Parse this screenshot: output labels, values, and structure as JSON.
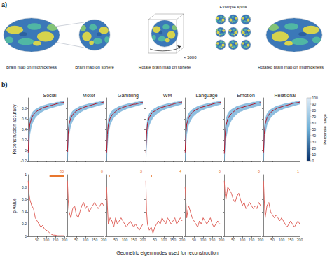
{
  "figure": {
    "panel_labels": [
      "a)",
      "b)"
    ],
    "panel_a": {
      "brain_left": "Brain map on midthickness",
      "sphere": "Brain map on sphere",
      "rotate": "Rotate brain map on sphere",
      "repeats": "× 5000",
      "spins": "Example spins",
      "brain_right": "Rotated brain map on midthickness"
    },
    "colorbar": {
      "label": "Percentile range",
      "range": [
        0,
        100
      ],
      "ticks": [
        0,
        10,
        20,
        30,
        40,
        50,
        60,
        70,
        80,
        90,
        100
      ]
    }
  },
  "chart_data": [
    {
      "type": "line",
      "title": "Social",
      "ylabel": "Reconstruction accuracy",
      "tick_labels": "y",
      "color": "#b2182b",
      "x": [
        1,
        5,
        10,
        20,
        30,
        40,
        50,
        60,
        70,
        80,
        90,
        100,
        110,
        120,
        130,
        140,
        150,
        160,
        170,
        180,
        190,
        200
      ],
      "values": [
        -0.05,
        0.3,
        0.5,
        0.62,
        0.68,
        0.72,
        0.75,
        0.77,
        0.79,
        0.81,
        0.82,
        0.83,
        0.84,
        0.85,
        0.86,
        0.87,
        0.88,
        0.89,
        0.9,
        0.905,
        0.91,
        0.92
      ],
      "band_lower": [
        -0.2,
        0.05,
        0.3,
        0.48,
        0.56,
        0.62,
        0.66,
        0.69,
        0.72,
        0.74,
        0.76,
        0.77,
        0.79,
        0.8,
        0.81,
        0.82,
        0.83,
        0.84,
        0.85,
        0.86,
        0.87,
        0.88
      ],
      "band_upper": [
        0.15,
        0.45,
        0.6,
        0.7,
        0.75,
        0.78,
        0.8,
        0.82,
        0.84,
        0.85,
        0.86,
        0.87,
        0.88,
        0.89,
        0.9,
        0.9,
        0.91,
        0.92,
        0.92,
        0.93,
        0.93,
        0.94
      ],
      "xlim": [
        0,
        200
      ],
      "xticks": [
        50,
        100,
        150,
        200
      ],
      "ylim": [
        -0.2,
        1
      ],
      "yticks": [
        -0.2,
        0,
        0.2,
        0.4,
        0.6,
        0.8
      ]
    },
    {
      "type": "line",
      "title": "Motor",
      "tick_labels": false,
      "color": "#b2182b",
      "x": [
        1,
        5,
        10,
        20,
        30,
        40,
        50,
        60,
        70,
        80,
        90,
        100,
        110,
        120,
        130,
        140,
        150,
        160,
        170,
        180,
        190,
        200
      ],
      "values": [
        -0.04,
        0.31,
        0.5,
        0.62,
        0.68,
        0.72,
        0.75,
        0.77,
        0.79,
        0.8,
        0.82,
        0.83,
        0.84,
        0.85,
        0.86,
        0.87,
        0.88,
        0.89,
        0.9,
        0.9,
        0.91,
        0.92
      ],
      "band_lower": [
        -0.2,
        0.05,
        0.3,
        0.48,
        0.56,
        0.62,
        0.66,
        0.69,
        0.72,
        0.74,
        0.76,
        0.77,
        0.79,
        0.8,
        0.81,
        0.82,
        0.83,
        0.84,
        0.85,
        0.86,
        0.87,
        0.88
      ],
      "band_upper": [
        0.15,
        0.45,
        0.6,
        0.7,
        0.75,
        0.78,
        0.8,
        0.82,
        0.84,
        0.85,
        0.86,
        0.87,
        0.88,
        0.89,
        0.9,
        0.9,
        0.91,
        0.92,
        0.92,
        0.93,
        0.93,
        0.94
      ],
      "xlim": [
        0,
        200
      ],
      "xticks": [
        50,
        100,
        150,
        200
      ],
      "ylim": [
        -0.2,
        1
      ],
      "yticks": [
        -0.2,
        0,
        0.2,
        0.4,
        0.6,
        0.8
      ]
    },
    {
      "type": "line",
      "title": "Gambling",
      "tick_labels": false,
      "color": "#b2182b",
      "x": [
        1,
        5,
        10,
        20,
        30,
        40,
        50,
        60,
        70,
        80,
        90,
        100,
        110,
        120,
        130,
        140,
        150,
        160,
        170,
        180,
        190,
        200
      ],
      "values": [
        -0.05,
        0.3,
        0.49,
        0.61,
        0.67,
        0.71,
        0.74,
        0.77,
        0.79,
        0.8,
        0.82,
        0.83,
        0.84,
        0.85,
        0.86,
        0.87,
        0.88,
        0.88,
        0.89,
        0.9,
        0.91,
        0.91
      ],
      "band_lower": [
        -0.2,
        0.05,
        0.3,
        0.48,
        0.56,
        0.62,
        0.66,
        0.69,
        0.72,
        0.74,
        0.76,
        0.77,
        0.79,
        0.8,
        0.81,
        0.82,
        0.83,
        0.84,
        0.85,
        0.86,
        0.87,
        0.88
      ],
      "band_upper": [
        0.15,
        0.45,
        0.6,
        0.7,
        0.75,
        0.78,
        0.8,
        0.82,
        0.84,
        0.85,
        0.86,
        0.87,
        0.88,
        0.89,
        0.9,
        0.9,
        0.91,
        0.92,
        0.92,
        0.93,
        0.93,
        0.94
      ],
      "xlim": [
        0,
        200
      ],
      "xticks": [
        50,
        100,
        150,
        200
      ],
      "ylim": [
        -0.2,
        1
      ],
      "yticks": [
        -0.2,
        0,
        0.2,
        0.4,
        0.6,
        0.8
      ]
    },
    {
      "type": "line",
      "title": "WM",
      "tick_labels": false,
      "color": "#b2182b",
      "x": [
        1,
        5,
        10,
        20,
        30,
        40,
        50,
        60,
        70,
        80,
        90,
        100,
        110,
        120,
        130,
        140,
        150,
        160,
        170,
        180,
        190,
        200
      ],
      "values": [
        -0.05,
        0.32,
        0.51,
        0.63,
        0.69,
        0.73,
        0.75,
        0.77,
        0.79,
        0.81,
        0.82,
        0.83,
        0.84,
        0.85,
        0.86,
        0.87,
        0.88,
        0.89,
        0.9,
        0.905,
        0.91,
        0.92
      ],
      "band_lower": [
        -0.2,
        0.05,
        0.3,
        0.48,
        0.56,
        0.62,
        0.66,
        0.69,
        0.72,
        0.74,
        0.76,
        0.77,
        0.79,
        0.8,
        0.81,
        0.82,
        0.83,
        0.84,
        0.85,
        0.86,
        0.87,
        0.88
      ],
      "band_upper": [
        0.15,
        0.45,
        0.6,
        0.7,
        0.75,
        0.78,
        0.8,
        0.82,
        0.84,
        0.85,
        0.86,
        0.87,
        0.88,
        0.89,
        0.9,
        0.9,
        0.91,
        0.92,
        0.92,
        0.93,
        0.93,
        0.94
      ],
      "xlim": [
        0,
        200
      ],
      "xticks": [
        50,
        100,
        150,
        200
      ],
      "ylim": [
        -0.2,
        1
      ],
      "yticks": [
        -0.2,
        0,
        0.2,
        0.4,
        0.6,
        0.8
      ]
    },
    {
      "type": "line",
      "title": "Language",
      "tick_labels": false,
      "color": "#b2182b",
      "x": [
        1,
        5,
        10,
        20,
        30,
        40,
        50,
        60,
        70,
        80,
        90,
        100,
        110,
        120,
        130,
        140,
        150,
        160,
        170,
        180,
        190,
        200
      ],
      "values": [
        -0.05,
        0.3,
        0.5,
        0.62,
        0.68,
        0.72,
        0.75,
        0.77,
        0.79,
        0.81,
        0.82,
        0.83,
        0.84,
        0.85,
        0.86,
        0.87,
        0.88,
        0.89,
        0.9,
        0.905,
        0.91,
        0.92
      ],
      "band_lower": [
        -0.2,
        0.05,
        0.3,
        0.48,
        0.56,
        0.62,
        0.66,
        0.69,
        0.72,
        0.74,
        0.76,
        0.77,
        0.79,
        0.8,
        0.81,
        0.82,
        0.83,
        0.84,
        0.85,
        0.86,
        0.87,
        0.88
      ],
      "band_upper": [
        0.15,
        0.45,
        0.6,
        0.7,
        0.75,
        0.78,
        0.8,
        0.82,
        0.84,
        0.85,
        0.86,
        0.87,
        0.88,
        0.89,
        0.9,
        0.9,
        0.91,
        0.92,
        0.92,
        0.93,
        0.93,
        0.94
      ],
      "xlim": [
        0,
        200
      ],
      "xticks": [
        50,
        100,
        150,
        200
      ],
      "ylim": [
        -0.2,
        1
      ],
      "yticks": [
        -0.2,
        0,
        0.2,
        0.4,
        0.6,
        0.8
      ]
    },
    {
      "type": "line",
      "title": "Emotion",
      "tick_labels": false,
      "color": "#b2182b",
      "x": [
        1,
        5,
        10,
        20,
        30,
        40,
        50,
        60,
        70,
        80,
        90,
        100,
        110,
        120,
        130,
        140,
        150,
        160,
        170,
        180,
        190,
        200
      ],
      "values": [
        -0.06,
        0.28,
        0.47,
        0.6,
        0.66,
        0.7,
        0.73,
        0.76,
        0.78,
        0.8,
        0.81,
        0.82,
        0.83,
        0.84,
        0.85,
        0.86,
        0.87,
        0.88,
        0.89,
        0.9,
        0.9,
        0.91
      ],
      "band_lower": [
        -0.2,
        0.0,
        0.22,
        0.4,
        0.5,
        0.57,
        0.62,
        0.66,
        0.69,
        0.72,
        0.74,
        0.75,
        0.77,
        0.78,
        0.79,
        0.8,
        0.81,
        0.82,
        0.83,
        0.84,
        0.85,
        0.86
      ],
      "band_upper": [
        0.15,
        0.45,
        0.6,
        0.7,
        0.75,
        0.78,
        0.8,
        0.82,
        0.84,
        0.85,
        0.86,
        0.87,
        0.88,
        0.89,
        0.9,
        0.9,
        0.91,
        0.92,
        0.92,
        0.93,
        0.93,
        0.94
      ],
      "xlim": [
        0,
        200
      ],
      "xticks": [
        50,
        100,
        150,
        200
      ],
      "ylim": [
        -0.2,
        1
      ],
      "yticks": [
        -0.2,
        0,
        0.2,
        0.4,
        0.6,
        0.8
      ]
    },
    {
      "type": "line",
      "title": "Relational",
      "tick_labels": false,
      "color": "#b2182b",
      "x": [
        1,
        5,
        10,
        20,
        30,
        40,
        50,
        60,
        70,
        80,
        90,
        100,
        110,
        120,
        130,
        140,
        150,
        160,
        170,
        180,
        190,
        200
      ],
      "values": [
        -0.05,
        0.3,
        0.5,
        0.62,
        0.68,
        0.72,
        0.75,
        0.77,
        0.79,
        0.81,
        0.82,
        0.83,
        0.84,
        0.85,
        0.86,
        0.87,
        0.88,
        0.89,
        0.9,
        0.905,
        0.91,
        0.92
      ],
      "band_lower": [
        -0.2,
        0.05,
        0.3,
        0.48,
        0.56,
        0.62,
        0.66,
        0.69,
        0.72,
        0.74,
        0.76,
        0.77,
        0.79,
        0.8,
        0.81,
        0.82,
        0.83,
        0.84,
        0.85,
        0.86,
        0.87,
        0.88
      ],
      "band_upper": [
        0.15,
        0.45,
        0.6,
        0.7,
        0.75,
        0.78,
        0.8,
        0.82,
        0.84,
        0.85,
        0.86,
        0.87,
        0.88,
        0.89,
        0.9,
        0.9,
        0.91,
        0.92,
        0.92,
        0.93,
        0.93,
        0.94
      ],
      "xlim": [
        0,
        200
      ],
      "xticks": [
        50,
        100,
        150,
        200
      ],
      "ylim": [
        -0.2,
        1
      ],
      "yticks": [
        -0.2,
        0,
        0.2,
        0.4,
        0.6,
        0.8
      ]
    },
    {
      "type": "line",
      "ylabel": "p-value",
      "tick_labels": true,
      "color": "#e0665f",
      "annotation": "83",
      "significant_ranges": [
        [
          118,
          200
        ]
      ],
      "x": [
        1,
        5,
        10,
        20,
        30,
        40,
        50,
        60,
        70,
        80,
        90,
        100,
        110,
        120,
        130,
        140,
        150,
        160,
        170,
        180,
        190,
        200
      ],
      "values": [
        0.9,
        0.7,
        0.6,
        0.5,
        0.45,
        0.3,
        0.25,
        0.2,
        0.15,
        0.18,
        0.12,
        0.1,
        0.08,
        0.05,
        0.03,
        0.02,
        0.02,
        0.01,
        0.01,
        0.01,
        0.01,
        0.01
      ],
      "xlim": [
        0,
        200
      ],
      "xticks": [
        50,
        100,
        150,
        200
      ],
      "ylim": [
        0,
        1
      ],
      "yticks": [
        0,
        0.2,
        0.4,
        0.6,
        0.8,
        1
      ]
    },
    {
      "type": "line",
      "tick_labels": "x",
      "color": "#e0665f",
      "annotation": "0",
      "significant_ranges": [],
      "x": [
        1,
        5,
        10,
        20,
        30,
        40,
        50,
        60,
        70,
        80,
        90,
        100,
        110,
        120,
        130,
        140,
        150,
        160,
        170,
        180,
        190,
        200
      ],
      "values": [
        0.9,
        0.6,
        0.4,
        0.3,
        0.45,
        0.5,
        0.35,
        0.3,
        0.4,
        0.5,
        0.55,
        0.45,
        0.5,
        0.4,
        0.45,
        0.5,
        0.55,
        0.5,
        0.45,
        0.5,
        0.55,
        0.5
      ],
      "xlim": [
        0,
        200
      ],
      "xticks": [
        50,
        100,
        150,
        200
      ],
      "ylim": [
        0,
        1
      ],
      "yticks": [
        0,
        0.2,
        0.4,
        0.6,
        0.8,
        1
      ]
    },
    {
      "type": "line",
      "tick_labels": "x",
      "color": "#e0665f",
      "annotation": "3",
      "significant_ranges": [
        [
          14,
          16
        ]
      ],
      "x": [
        1,
        5,
        10,
        20,
        30,
        40,
        50,
        60,
        70,
        80,
        90,
        100,
        110,
        120,
        130,
        140,
        150,
        160,
        170,
        180,
        190,
        200
      ],
      "values": [
        0.8,
        0.5,
        0.2,
        0.3,
        0.25,
        0.15,
        0.3,
        0.2,
        0.25,
        0.3,
        0.25,
        0.2,
        0.15,
        0.2,
        0.25,
        0.2,
        0.15,
        0.2,
        0.15,
        0.1,
        0.15,
        0.2
      ],
      "xlim": [
        0,
        200
      ],
      "xticks": [
        50,
        100,
        150,
        200
      ],
      "ylim": [
        0,
        1
      ],
      "yticks": [
        0,
        0.2,
        0.4,
        0.6,
        0.8,
        1
      ]
    },
    {
      "type": "line",
      "tick_labels": "x",
      "color": "#e0665f",
      "annotation": "4",
      "significant_ranges": [
        [
          30,
          33
        ]
      ],
      "xlabel": "Geometric eigenmodes used for reconstruction",
      "x": [
        1,
        5,
        10,
        20,
        30,
        40,
        50,
        60,
        70,
        80,
        90,
        100,
        110,
        120,
        130,
        140,
        150,
        160,
        170,
        180,
        190,
        200
      ],
      "values": [
        0.9,
        0.4,
        0.2,
        0.1,
        0.15,
        0.05,
        0.15,
        0.2,
        0.25,
        0.2,
        0.3,
        0.25,
        0.2,
        0.3,
        0.25,
        0.2,
        0.25,
        0.3,
        0.2,
        0.25,
        0.3,
        0.25
      ],
      "xlim": [
        0,
        200
      ],
      "xticks": [
        50,
        100,
        150,
        200
      ],
      "ylim": [
        0,
        1
      ],
      "yticks": [
        0,
        0.2,
        0.4,
        0.6,
        0.8,
        1
      ]
    },
    {
      "type": "line",
      "tick_labels": "x",
      "color": "#e0665f",
      "annotation": "0",
      "significant_ranges": [],
      "x": [
        1,
        5,
        10,
        20,
        30,
        40,
        50,
        60,
        70,
        80,
        90,
        100,
        110,
        120,
        130,
        140,
        150,
        160,
        170,
        180,
        190,
        200
      ],
      "values": [
        0.8,
        0.6,
        0.3,
        0.5,
        0.4,
        0.3,
        0.25,
        0.2,
        0.15,
        0.25,
        0.2,
        0.3,
        0.25,
        0.2,
        0.25,
        0.3,
        0.2,
        0.15,
        0.2,
        0.25,
        0.2,
        0.2
      ],
      "xlim": [
        0,
        200
      ],
      "xticks": [
        50,
        100,
        150,
        200
      ],
      "ylim": [
        0,
        1
      ],
      "yticks": [
        0,
        0.2,
        0.4,
        0.6,
        0.8,
        1
      ]
    },
    {
      "type": "line",
      "tick_labels": "x",
      "color": "#e0665f",
      "annotation": "0",
      "significant_ranges": [],
      "x": [
        1,
        5,
        10,
        20,
        30,
        40,
        50,
        60,
        70,
        80,
        90,
        100,
        110,
        120,
        130,
        140,
        150,
        160,
        170,
        180,
        190,
        200
      ],
      "values": [
        0.9,
        0.7,
        0.6,
        0.8,
        0.75,
        0.7,
        0.6,
        0.55,
        0.65,
        0.7,
        0.6,
        0.5,
        0.55,
        0.45,
        0.5,
        0.55,
        0.5,
        0.45,
        0.5,
        0.45,
        0.55,
        0.5
      ],
      "xlim": [
        0,
        200
      ],
      "xticks": [
        50,
        100,
        150,
        200
      ],
      "ylim": [
        0,
        1
      ],
      "yticks": [
        0,
        0.2,
        0.4,
        0.6,
        0.8,
        1
      ]
    },
    {
      "type": "line",
      "tick_labels": "x",
      "color": "#e0665f",
      "annotation": "1",
      "significant_ranges": [],
      "x": [
        1,
        5,
        10,
        20,
        30,
        40,
        50,
        60,
        70,
        80,
        90,
        100,
        110,
        120,
        130,
        140,
        150,
        160,
        170,
        180,
        190,
        200
      ],
      "values": [
        0.9,
        0.6,
        0.3,
        0.5,
        0.55,
        0.4,
        0.35,
        0.3,
        0.35,
        0.3,
        0.25,
        0.3,
        0.25,
        0.2,
        0.15,
        0.2,
        0.25,
        0.2,
        0.15,
        0.2,
        0.25,
        0.2
      ],
      "xlim": [
        0,
        200
      ],
      "xticks": [
        50,
        100,
        150,
        200
      ],
      "ylim": [
        0,
        1
      ],
      "yticks": [
        0,
        0.2,
        0.4,
        0.6,
        0.8,
        1
      ]
    }
  ]
}
